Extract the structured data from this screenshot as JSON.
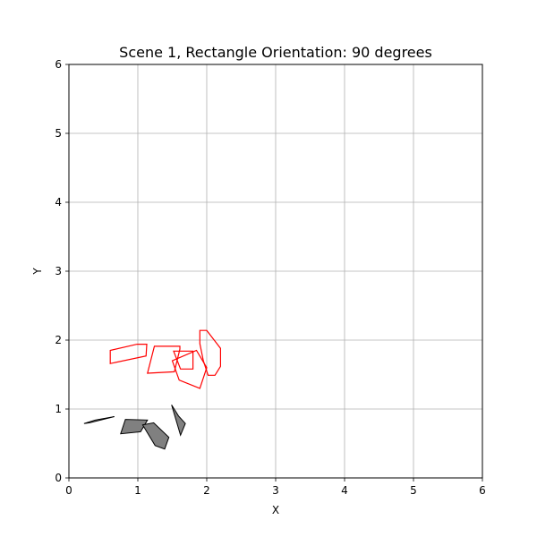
{
  "chart_data": {
    "type": "scatter",
    "title": "Scene 1, Rectangle Orientation: 90 degrees",
    "xlabel": "X",
    "ylabel": "Y",
    "xlim": [
      0,
      6
    ],
    "ylim": [
      0,
      6
    ],
    "xticks": [
      "0",
      "1",
      "2",
      "3",
      "4",
      "5",
      "6"
    ],
    "yticks": [
      "0",
      "1",
      "2",
      "3",
      "4",
      "5",
      "6"
    ],
    "grid": true,
    "obstacles": {
      "fill": "#808080",
      "stroke": "#000000",
      "polygons": [
        [
          [
            0.22,
            0.79
          ],
          [
            0.38,
            0.84
          ],
          [
            0.66,
            0.89
          ],
          [
            0.3,
            0.8
          ]
        ],
        [
          [
            0.75,
            0.64
          ],
          [
            0.82,
            0.85
          ],
          [
            1.14,
            0.84
          ],
          [
            1.04,
            0.67
          ]
        ],
        [
          [
            1.07,
            0.77
          ],
          [
            1.23,
            0.8
          ],
          [
            1.45,
            0.59
          ],
          [
            1.39,
            0.42
          ],
          [
            1.25,
            0.47
          ]
        ],
        [
          [
            1.49,
            1.06
          ],
          [
            1.62,
            0.62
          ],
          [
            1.69,
            0.79
          ],
          [
            1.59,
            0.9
          ]
        ]
      ]
    },
    "shapes": {
      "stroke": "#ff0000",
      "polygons": [
        [
          [
            0.6,
            1.66
          ],
          [
            1.12,
            1.77
          ],
          [
            1.13,
            1.94
          ],
          [
            0.99,
            1.94
          ],
          [
            0.6,
            1.85
          ]
        ],
        [
          [
            1.14,
            1.52
          ],
          [
            1.53,
            1.54
          ],
          [
            1.61,
            1.87
          ],
          [
            1.61,
            1.91
          ],
          [
            1.24,
            1.91
          ]
        ],
        [
          [
            1.52,
            1.84
          ],
          [
            1.8,
            1.84
          ],
          [
            1.8,
            1.58
          ],
          [
            1.62,
            1.58
          ]
        ],
        [
          [
            1.5,
            1.7
          ],
          [
            1.6,
            1.42
          ],
          [
            1.9,
            1.3
          ],
          [
            2.0,
            1.6
          ],
          [
            1.85,
            1.85
          ]
        ],
        [
          [
            1.9,
            2.14
          ],
          [
            2.0,
            2.14
          ],
          [
            2.2,
            1.88
          ],
          [
            2.2,
            1.62
          ],
          [
            2.12,
            1.49
          ],
          [
            2.02,
            1.49
          ],
          [
            1.95,
            1.7
          ],
          [
            1.9,
            1.95
          ]
        ]
      ]
    }
  }
}
